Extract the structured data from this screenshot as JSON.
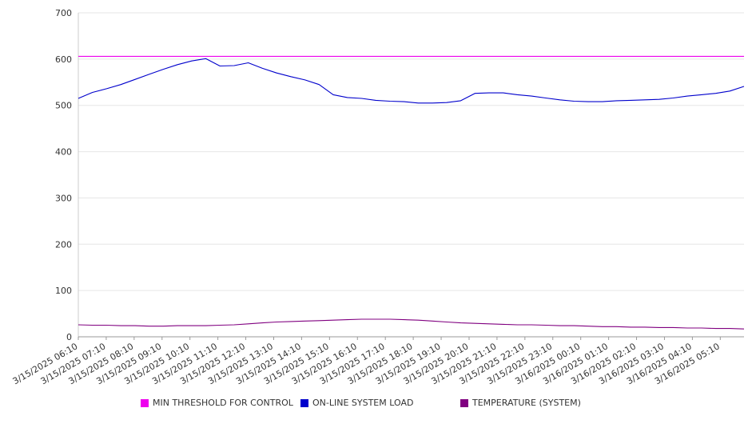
{
  "chart_data": {
    "type": "line",
    "title": "",
    "xlabel": "",
    "ylabel": "",
    "ylim": [
      0,
      700
    ],
    "yticks": [
      0,
      100,
      200,
      300,
      400,
      500,
      600,
      700
    ],
    "grid": true,
    "legend_position": "bottom",
    "x_tick_labels": [
      "3/15/2025 06:10",
      "3/15/2025 07:10",
      "3/15/2025 08:10",
      "3/15/2025 09:10",
      "3/15/2025 10:10",
      "3/15/2025 11:10",
      "3/15/2025 12:10",
      "3/15/2025 13:10",
      "3/15/2025 14:10",
      "3/15/2025 15:10",
      "3/15/2025 16:10",
      "3/15/2025 17:10",
      "3/15/2025 18:10",
      "3/15/2025 19:10",
      "3/15/2025 20:10",
      "3/15/2025 21:10",
      "3/15/2025 22:10",
      "3/15/2025 23:10",
      "3/16/2025 00:10",
      "3/16/2025 01:10",
      "3/16/2025 02:10",
      "3/16/2025 03:10",
      "3/16/2025 04:10",
      "3/16/2025 05:10"
    ],
    "x": [
      "3/15/2025 06:10",
      "3/15/2025 06:40",
      "3/15/2025 07:10",
      "3/15/2025 07:40",
      "3/15/2025 08:10",
      "3/15/2025 08:40",
      "3/15/2025 09:10",
      "3/15/2025 09:40",
      "3/15/2025 10:10",
      "3/15/2025 10:40",
      "3/15/2025 11:10",
      "3/15/2025 11:40",
      "3/15/2025 12:10",
      "3/15/2025 12:40",
      "3/15/2025 13:10",
      "3/15/2025 13:40",
      "3/15/2025 14:10",
      "3/15/2025 14:40",
      "3/15/2025 15:10",
      "3/15/2025 15:40",
      "3/15/2025 16:10",
      "3/15/2025 16:40",
      "3/15/2025 17:10",
      "3/15/2025 17:40",
      "3/15/2025 18:10",
      "3/15/2025 18:40",
      "3/15/2025 19:10",
      "3/15/2025 19:40",
      "3/15/2025 20:10",
      "3/15/2025 20:40",
      "3/15/2025 21:10",
      "3/15/2025 21:40",
      "3/15/2025 22:10",
      "3/15/2025 22:40",
      "3/15/2025 23:10",
      "3/15/2025 23:40",
      "3/16/2025 00:10",
      "3/16/2025 00:40",
      "3/16/2025 01:10",
      "3/16/2025 01:40",
      "3/16/2025 02:10",
      "3/16/2025 02:40",
      "3/16/2025 03:10",
      "3/16/2025 03:40",
      "3/16/2025 04:10",
      "3/16/2025 04:40",
      "3/16/2025 05:10",
      "3/16/2025 05:40"
    ],
    "series": [
      {
        "name": "MIN THRESHOLD FOR CONTROL",
        "color": "#ee00ee",
        "values": [
          606,
          606,
          606,
          606,
          606,
          606,
          606,
          606,
          606,
          606,
          606,
          606,
          606,
          606,
          606,
          606,
          606,
          606,
          606,
          606,
          606,
          606,
          606,
          606,
          606,
          606,
          606,
          606,
          606,
          606,
          606,
          606,
          606,
          606,
          606,
          606,
          606,
          606,
          606,
          606,
          606,
          606,
          606,
          606,
          606,
          606,
          606,
          606
        ]
      },
      {
        "name": "ON-LINE SYSTEM LOAD",
        "color": "#0000cc",
        "values": [
          515,
          528,
          536,
          545,
          556,
          567,
          578,
          588,
          596,
          601,
          585,
          586,
          592,
          580,
          570,
          562,
          555,
          545,
          523,
          517,
          515,
          511,
          509,
          508,
          505,
          505,
          506,
          510,
          526,
          527,
          527,
          523,
          520,
          516,
          512,
          509,
          508,
          508,
          510,
          511,
          512,
          513,
          516,
          520,
          523,
          526,
          531,
          541
        ]
      },
      {
        "name": "TEMPERATURE (SYSTEM)",
        "color": "#800080",
        "values": [
          26,
          25,
          25,
          24,
          24,
          23,
          23,
          24,
          24,
          24,
          25,
          26,
          28,
          30,
          32,
          33,
          34,
          35,
          36,
          37,
          38,
          38,
          38,
          37,
          36,
          34,
          32,
          30,
          29,
          28,
          27,
          26,
          26,
          25,
          24,
          24,
          23,
          22,
          22,
          21,
          21,
          20,
          20,
          19,
          19,
          18,
          18,
          17
        ]
      }
    ]
  }
}
